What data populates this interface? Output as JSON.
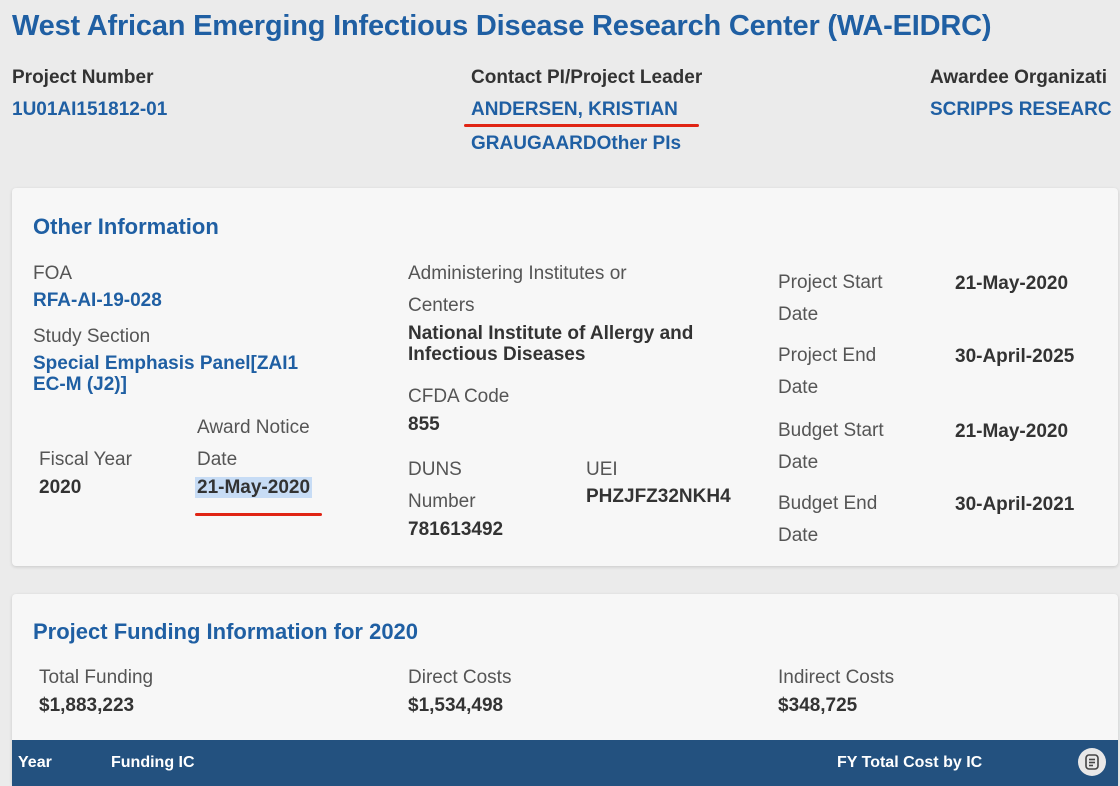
{
  "header": {
    "title": "West African Emerging Infectious Disease Research Center (WA-EIDRC)",
    "project_number_label": "Project Number",
    "project_number": "1U01AI151812-01",
    "contact_pi_label": "Contact PI/Project Leader",
    "contact_pi": "ANDERSEN, KRISTIAN",
    "contact_pi_line2": "GRAUGAARDOther PIs",
    "awardee_label": "Awardee Organizati",
    "awardee": "SCRIPPS RESEARC"
  },
  "other_info": {
    "title": "Other Information",
    "foa_label": "FOA",
    "foa": "RFA-AI-19-028",
    "study_section_label": "Study Section",
    "study_section_line1": "Special Emphasis Panel[ZAI1",
    "study_section_line2": "EC-M (J2)]",
    "fiscal_year_label": "Fiscal Year",
    "fiscal_year": "2020",
    "award_notice_label_1": "Award Notice",
    "award_notice_label_2": "Date",
    "award_notice_date": "21-May-2020",
    "admin_label_1": "Administering Institutes or",
    "admin_label_2": "Centers",
    "admin_value_1": "National Institute of Allergy and",
    "admin_value_2": "Infectious Diseases",
    "cfda_label": "CFDA Code",
    "cfda": "855",
    "duns_label_1": "DUNS",
    "duns_label_2": "Number",
    "duns": "781613492",
    "uei_label": "UEI",
    "uei": "PHZJFZ32NKH4",
    "project_start_label_1": "Project Start",
    "project_start_label_2": "Date",
    "project_start": "21-May-2020",
    "project_end_label_1": "Project End",
    "project_end_label_2": "Date",
    "project_end": "30-April-2025",
    "budget_start_label_1": "Budget Start",
    "budget_start_label_2": "Date",
    "budget_start": "21-May-2020",
    "budget_end_label_1": "Budget End",
    "budget_end_label_2": "Date",
    "budget_end": "30-April-2021"
  },
  "funding": {
    "title": "Project Funding Information for 2020",
    "total_label": "Total Funding",
    "total": "$1,883,223",
    "direct_label": "Direct Costs",
    "direct": "$1,534,498",
    "indirect_label": "Indirect Costs",
    "indirect": "$348,725"
  },
  "table": {
    "col_year": "Year",
    "col_funding_ic": "Funding IC",
    "col_fy_total": "FY Total Cost by IC"
  },
  "colors": {
    "link": "#1f5fa3",
    "table_header": "#23517f",
    "annotation_red": "#e02414",
    "highlight": "#c7dcf5"
  }
}
